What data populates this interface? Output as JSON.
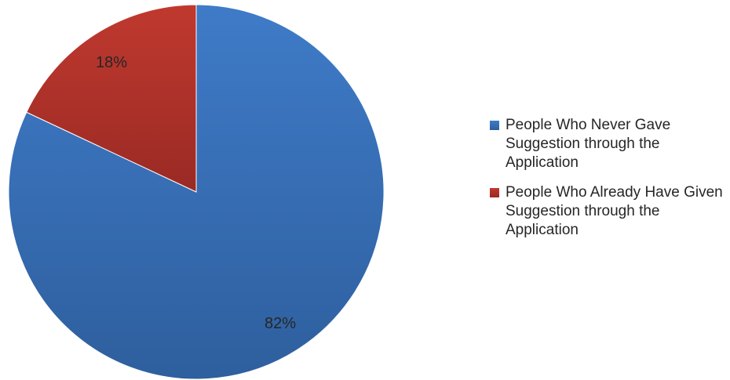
{
  "chart_data": {
    "type": "pie",
    "title": "",
    "start_angle_deg": 0,
    "direction": "clockwise",
    "slices": [
      {
        "label": "People Who Never Gave Suggestion through the Application",
        "value": 82,
        "value_label": "82%",
        "color": "#3F7BC8",
        "color_dark": "#2E5F9E"
      },
      {
        "label": "People Who Already Have Given Suggestion through the Application",
        "value": 18,
        "value_label": "18%",
        "color": "#C0392F",
        "color_dark": "#9A2A24"
      }
    ],
    "legend": {
      "position": "right"
    }
  }
}
